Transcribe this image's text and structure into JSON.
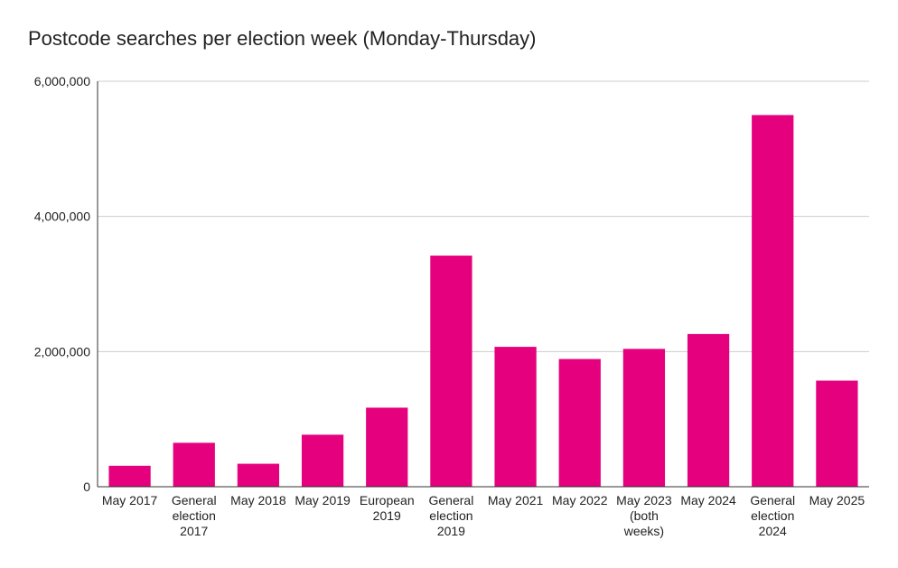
{
  "chart_data": {
    "type": "bar",
    "title": "Postcode searches per election week (Monday-Thursday)",
    "xlabel": "",
    "ylabel": "",
    "ylim": [
      0,
      6000000
    ],
    "yticks": [
      0,
      2000000,
      4000000,
      6000000
    ],
    "ytick_labels": [
      "0",
      "2,000,000",
      "4,000,000",
      "6,000,000"
    ],
    "grid": true,
    "legend": "none",
    "bar_color": "#E5007D",
    "categories": [
      "May 2017",
      "General election 2017",
      "May 2018",
      "May 2019",
      "European 2019",
      "General election 2019",
      "May 2021",
      "May 2022",
      "May 2023 (both weeks)",
      "May 2024",
      "General election 2024",
      "May 2025"
    ],
    "category_lines": [
      [
        "May 2017"
      ],
      [
        "General",
        "election",
        "2017"
      ],
      [
        "May 2018"
      ],
      [
        "May 2019"
      ],
      [
        "European",
        "2019"
      ],
      [
        "General",
        "election",
        "2019"
      ],
      [
        "May 2021"
      ],
      [
        "May 2022"
      ],
      [
        "May 2023",
        "(both",
        "weeks)"
      ],
      [
        "May 2024"
      ],
      [
        "General",
        "election",
        "2024"
      ],
      [
        "May 2025"
      ]
    ],
    "values": [
      310000,
      650000,
      340000,
      770000,
      1170000,
      3420000,
      2070000,
      1890000,
      2040000,
      2260000,
      5500000,
      1570000
    ]
  }
}
